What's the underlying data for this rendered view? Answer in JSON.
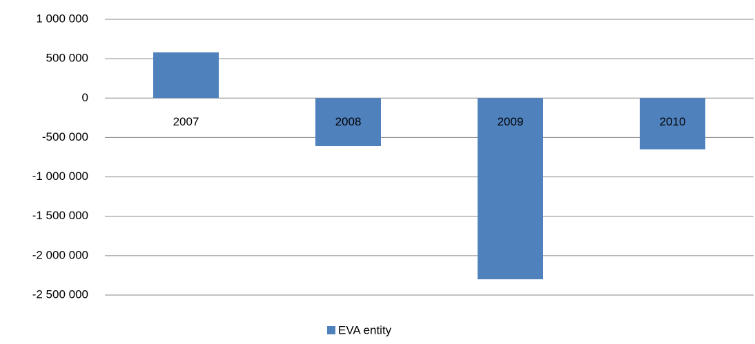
{
  "chart_data": {
    "type": "bar",
    "categories": [
      "2007",
      "2008",
      "2009",
      "2010"
    ],
    "series": [
      {
        "name": "EVA entity",
        "color": "#4f81bd",
        "values": [
          580000,
          -610000,
          -2300000,
          -650000
        ]
      }
    ],
    "ylim": [
      -2500000,
      1000000
    ],
    "yticks": [
      {
        "value": -2500000,
        "label": "-2 500 000"
      },
      {
        "value": -2000000,
        "label": "-2 000 000"
      },
      {
        "value": -1500000,
        "label": "-1 500 000"
      },
      {
        "value": -1000000,
        "label": "-1 000 000"
      },
      {
        "value": -500000,
        "label": "-500 000"
      },
      0,
      {
        "value": 500000,
        "label": "500 000"
      },
      {
        "value": 1000000,
        "label": "1 000 000"
      }
    ],
    "grid": true,
    "legend": "bottom"
  }
}
